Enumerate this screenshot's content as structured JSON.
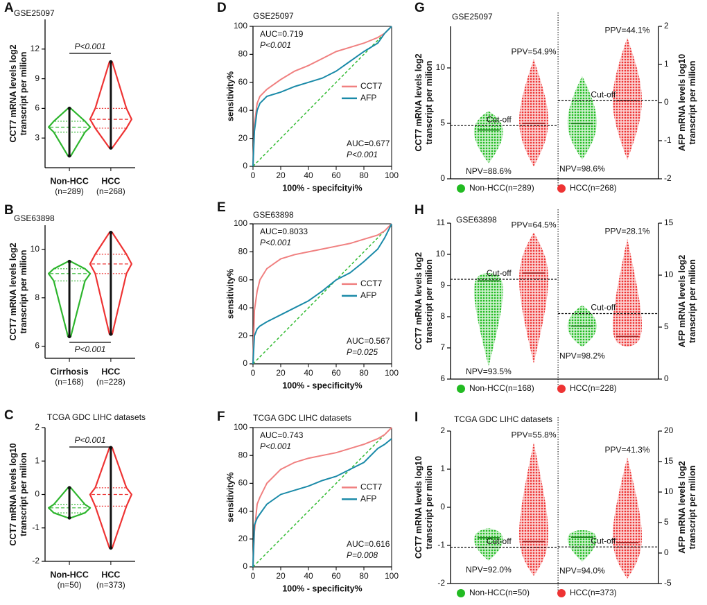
{
  "chart_data": [
    {
      "type": "violin",
      "label": "A",
      "title": "GSE25097",
      "ylabel": [
        "CCT7 mRNA levels log2",
        "transcript per milion"
      ],
      "ylim": [
        0,
        15
      ],
      "yticks": [
        3,
        6,
        9,
        12
      ],
      "categories": [
        "Non-HCC",
        "HCC"
      ],
      "n_labels": [
        "(n=289)",
        "(n=268)"
      ],
      "groups": [
        {
          "color": "#2db52d",
          "min": 1.2,
          "q1": 3.6,
          "median": 4.1,
          "q3": 4.7,
          "max": 6.0
        },
        {
          "color": "#ee3333",
          "min": 2.0,
          "q1": 4.0,
          "median": 4.9,
          "q3": 6.0,
          "max": 10.7
        }
      ],
      "pvalue": "P<0.001"
    },
    {
      "type": "violin",
      "label": "B",
      "title": "GSE63898",
      "ylabel": [
        "CCT7 mRNA levels log2",
        "transcript per milion"
      ],
      "ylim": [
        5.5,
        11
      ],
      "yticks": [
        6,
        8,
        10
      ],
      "categories": [
        "Cirrhosis",
        "HCC"
      ],
      "n_labels": [
        "(n=168)",
        "(n=228)"
      ],
      "groups": [
        {
          "color": "#2db52d",
          "min": 6.4,
          "q1": 8.7,
          "median": 9.0,
          "q3": 9.2,
          "max": 9.5
        },
        {
          "color": "#ee3333",
          "min": 6.5,
          "q1": 9.0,
          "median": 9.4,
          "q3": 9.8,
          "max": 10.7
        }
      ],
      "pvalue": "P<0.001"
    },
    {
      "type": "violin",
      "label": "C",
      "title": "TCGA GDC LIHC datasets",
      "ylabel": [
        "CCT7 mRNA levels log10",
        "transcript per milion"
      ],
      "ylim": [
        -2,
        2
      ],
      "yticks": [
        -2,
        -1,
        0,
        1,
        2
      ],
      "categories": [
        "Non-HCC",
        "HCC"
      ],
      "n_labels": [
        "(n=50)",
        "(n=373)"
      ],
      "groups": [
        {
          "color": "#2db52d",
          "min": -0.7,
          "q1": -0.55,
          "median": -0.4,
          "q3": -0.3,
          "max": 0.2
        },
        {
          "color": "#ee3333",
          "min": -1.6,
          "q1": -0.35,
          "median": 0,
          "q3": 0.2,
          "max": 1.4
        }
      ],
      "pvalue": "P<0.001"
    },
    {
      "type": "roc",
      "label": "D",
      "title": "GSE25097",
      "xlabel": "100% - specifcityi%",
      "ylabel": "sensitivity%",
      "xlim": [
        0,
        100
      ],
      "ylim": [
        0,
        100
      ],
      "xticks": [
        0,
        20,
        40,
        60,
        80,
        100
      ],
      "yticks": [
        0,
        20,
        40,
        60,
        80,
        100
      ],
      "x": [
        0,
        1,
        3,
        5,
        10,
        20,
        30,
        40,
        50,
        60,
        70,
        80,
        90,
        95,
        100
      ],
      "series": [
        {
          "name": "CCT7",
          "color": "#f08080",
          "stats": [
            "AUC=0.719",
            "P<0.001"
          ],
          "values": [
            0,
            30,
            45,
            50,
            55,
            62,
            68,
            72,
            77,
            82,
            85,
            88,
            92,
            95,
            100
          ]
        },
        {
          "name": "AFP",
          "color": "#1a8aa8",
          "stats": [
            "AUC=0.677",
            "P<0.001"
          ],
          "values": [
            0,
            25,
            40,
            45,
            50,
            53,
            57,
            60,
            63,
            68,
            75,
            82,
            88,
            95,
            100
          ]
        }
      ]
    },
    {
      "type": "roc",
      "label": "E",
      "title": "GSE63898",
      "xlabel": "100% - specificity%",
      "ylabel": "sensitivity%",
      "xlim": [
        0,
        100
      ],
      "ylim": [
        0,
        100
      ],
      "xticks": [
        0,
        20,
        40,
        60,
        80,
        100
      ],
      "yticks": [
        0,
        20,
        40,
        60,
        80,
        100
      ],
      "x": [
        0,
        1,
        3,
        5,
        10,
        20,
        30,
        40,
        50,
        60,
        70,
        80,
        90,
        95,
        100
      ],
      "series": [
        {
          "name": "CCT7",
          "color": "#f08080",
          "stats": [
            "AUC=0.8033",
            "P<0.001"
          ],
          "values": [
            0,
            38,
            52,
            60,
            68,
            75,
            78,
            80,
            82,
            84,
            86,
            89,
            92,
            95,
            100
          ]
        },
        {
          "name": "AFP",
          "color": "#1a8aa8",
          "stats": [
            "AUC=0.567",
            "P=0.025"
          ],
          "values": [
            0,
            20,
            25,
            27,
            30,
            35,
            40,
            45,
            52,
            60,
            65,
            73,
            82,
            90,
            100
          ]
        }
      ]
    },
    {
      "type": "roc",
      "label": "F",
      "title": "TCGA GDC LIHC datasets",
      "xlabel": "100% - specificity%",
      "ylabel": "sensitivity%",
      "xlim": [
        0,
        100
      ],
      "ylim": [
        0,
        100
      ],
      "xticks": [
        0,
        20,
        40,
        60,
        80,
        100
      ],
      "yticks": [
        0,
        20,
        40,
        60,
        80,
        100
      ],
      "x": [
        0,
        1,
        3,
        5,
        10,
        20,
        30,
        40,
        50,
        60,
        70,
        80,
        90,
        95,
        100
      ],
      "series": [
        {
          "name": "CCT7",
          "color": "#f08080",
          "stats": [
            "AUC=0.743",
            "P<0.001"
          ],
          "values": [
            0,
            25,
            45,
            50,
            60,
            70,
            75,
            78,
            80,
            82,
            85,
            88,
            92,
            95,
            100
          ]
        },
        {
          "name": "AFP",
          "color": "#1a8aa8",
          "stats": [
            "AUC=0.616",
            "P=0.008"
          ],
          "values": [
            0,
            30,
            35,
            38,
            45,
            52,
            55,
            58,
            62,
            65,
            70,
            75,
            85,
            88,
            92
          ]
        }
      ]
    },
    {
      "type": "dot",
      "label": "G",
      "title": "GSE25097",
      "ylabel": [
        "CCT7 mRNA levels log2",
        "transcript per milion"
      ],
      "y2label": [
        "AFP mRNA levels log10",
        "transcript per milion"
      ],
      "ylim": [
        0,
        13.75
      ],
      "yticks": [
        0,
        5,
        10
      ],
      "y2lim": [
        -2,
        2
      ],
      "y2ticks": [
        -2,
        -1,
        0,
        1,
        2
      ],
      "legend": [
        {
          "name": "Non-HCC(n=289)",
          "color": "#22bb22"
        },
        {
          "name": "HCC(n=268)",
          "color": "#ee3333"
        }
      ],
      "panels": [
        {
          "axis": "y",
          "cutoff": 4.8,
          "cutoff_label": "Cut-off",
          "npv": "NPV=88.6%",
          "ppv": "PPV=54.9%",
          "groups": [
            {
              "mean": 4.4,
              "min": 1.4,
              "max": 6.1
            },
            {
              "mean": 5.0,
              "min": 1.1,
              "max": 10.8
            }
          ]
        },
        {
          "axis": "y2",
          "cutoff": 0.05,
          "cutoff_label": "Cut-off",
          "npv": "NPV=98.6%",
          "ppv": "PPV=44.1%",
          "groups": [
            {
              "mean": -0.55,
              "min": -1.5,
              "max": 0.7
            },
            {
              "mean": 0.05,
              "min": -1.5,
              "max": 1.7
            }
          ]
        }
      ]
    },
    {
      "type": "dot",
      "label": "H",
      "title": "GSE63898",
      "ylabel": [
        "CCT7 mRNA levels log2",
        "transcript per milion"
      ],
      "y2label": [
        "AFP mRNA levels log2",
        "transcript per milion"
      ],
      "ylim": [
        6,
        11
      ],
      "yticks": [
        6,
        7,
        8,
        9,
        10,
        11
      ],
      "y2lim": [
        0,
        15
      ],
      "y2ticks": [
        0,
        5,
        10,
        15
      ],
      "legend": [
        {
          "name": "Non-HCC(n=168)",
          "color": "#22bb22"
        },
        {
          "name": "HCC(n=228)",
          "color": "#ee3333"
        }
      ],
      "panels": [
        {
          "axis": "y",
          "cutoff": 9.2,
          "cutoff_label": "Cut-off",
          "npv": "NPV=93.5%",
          "ppv": "PPV=64.5%",
          "groups": [
            {
              "mean": 9.15,
              "min": 6.4,
              "max": 9.4
            },
            {
              "mean": 9.4,
              "min": 6.5,
              "max": 10.7
            }
          ]
        },
        {
          "axis": "y2",
          "cutoff": 6.3,
          "cutoff_label": "Cut-off",
          "npv": "NPV=98.2%",
          "ppv": "PPV=28.1%",
          "groups": [
            {
              "mean": 5.1,
              "min": 3.1,
              "max": 7.1
            },
            {
              "mean": 4.1,
              "min": 3.1,
              "max": 13.5
            }
          ]
        }
      ]
    },
    {
      "type": "dot",
      "label": "I",
      "title": "TCGA GDC LIHC datasets",
      "ylabel": [
        "CCT7 mRNA levels log10",
        "transcript per milion"
      ],
      "y2label": [
        "AFP mRNA levels log2",
        "transcript per milion"
      ],
      "ylim": [
        -2,
        2
      ],
      "yticks": [
        -2,
        -1,
        0,
        1,
        2
      ],
      "y2lim": [
        -5,
        20
      ],
      "y2ticks": [
        -5,
        0,
        5,
        10,
        15,
        20
      ],
      "legend": [
        {
          "name": "Non-HCC(n=50)",
          "color": "#22bb22"
        },
        {
          "name": "HCC(n=373)",
          "color": "#ee3333"
        }
      ],
      "panels": [
        {
          "axis": "y",
          "cutoff": -1.05,
          "cutoff_label": "Cut-off",
          "npv": "NPV=92.0%",
          "ppv": "PPV=55.8%",
          "groups": [
            {
              "mean": -0.8,
              "min": -1.4,
              "max": -0.55
            },
            {
              "mean": -0.9,
              "min": -1.8,
              "max": 1.7
            }
          ]
        },
        {
          "axis": "y2",
          "cutoff": 1.0,
          "cutoff_label": "Cut-off",
          "npv": "NPV=94.0%",
          "ppv": "PPV=41.3%",
          "groups": [
            {
              "mean": 2.6,
              "min": -1.4,
              "max": 3.75
            },
            {
              "mean": 1.7,
              "min": -4.2,
              "max": 15.7
            }
          ]
        }
      ]
    }
  ]
}
